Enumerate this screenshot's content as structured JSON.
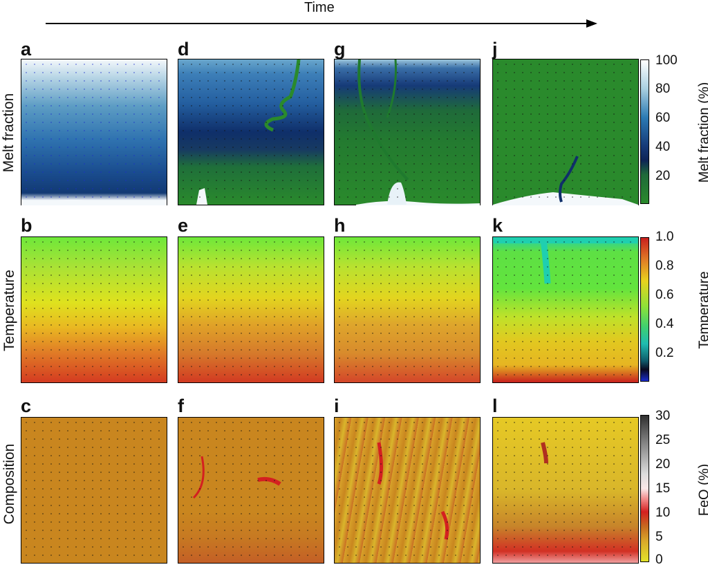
{
  "header": {
    "time_label": "Time"
  },
  "rows": [
    {
      "label": "Melt fraction",
      "letters": [
        "a",
        "d",
        "g",
        "j"
      ]
    },
    {
      "label": "Temperature",
      "letters": [
        "b",
        "e",
        "h",
        "k"
      ]
    },
    {
      "label": "Composition",
      "letters": [
        "c",
        "f",
        "i",
        "l"
      ]
    }
  ],
  "colorbars": [
    {
      "title": "Melt fraction (%)",
      "ticks": [
        "100",
        "80",
        "60",
        "40",
        "20"
      ]
    },
    {
      "title": "Temperature",
      "ticks": [
        "1.0",
        "0.8",
        "0.6",
        "0.4",
        "0.2"
      ]
    },
    {
      "title": "FeO (%)",
      "ticks": [
        "30",
        "25",
        "20",
        "15",
        "10",
        "5",
        "0"
      ]
    }
  ],
  "colors": {
    "melt_green": "#1f8a2a",
    "melt_blue": "#0a3d8a",
    "temp_red": "#c81e1e",
    "temp_yellow": "#e8d21e",
    "temp_green": "#6fe63a",
    "comp_orange": "#c98a1e",
    "comp_red": "#d42020",
    "arrow_blue": "#1a2ccc"
  }
}
